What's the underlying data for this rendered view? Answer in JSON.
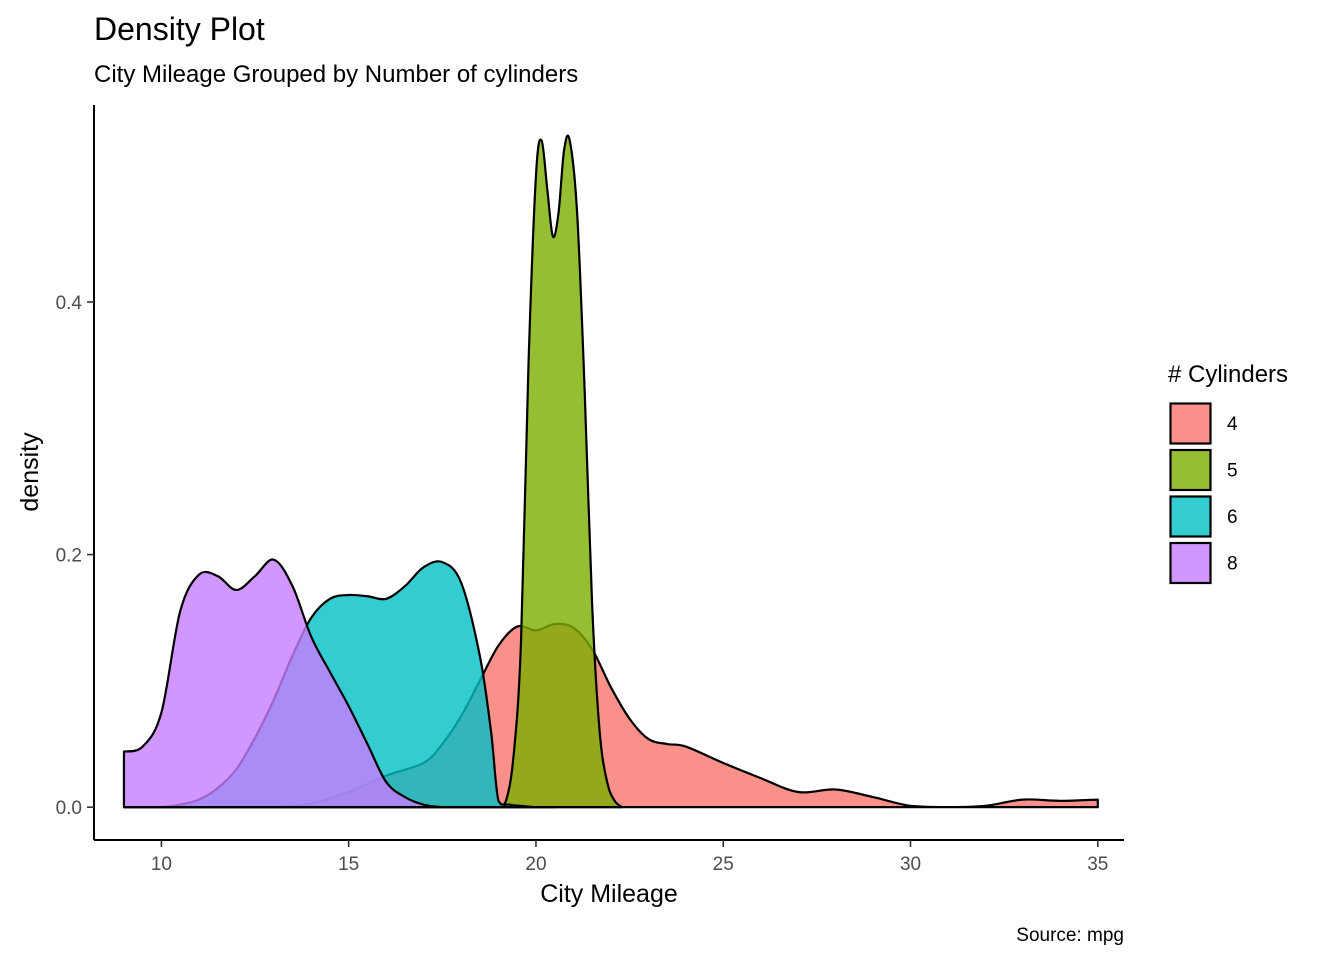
{
  "chart_data": {
    "type": "area",
    "title": "Density Plot",
    "subtitle": "City Mileage Grouped by Number of cylinders",
    "xlabel": "City Mileage",
    "ylabel": "density",
    "caption": "Source: mpg",
    "xlim": [
      8.2,
      35.7
    ],
    "ylim": [
      -0.026,
      0.556
    ],
    "x_ticks": [
      10,
      15,
      20,
      25,
      30,
      35
    ],
    "y_ticks": [
      0.0,
      0.2,
      0.4
    ],
    "y_tick_labels": [
      "0.0",
      "0.2",
      "0.4"
    ],
    "grid": false,
    "legend_position": "right",
    "legend_title": "# Cylinders",
    "series": [
      {
        "name": "4",
        "color": "#F8766D",
        "x": [
          9,
          11,
          13,
          14,
          15,
          16,
          17,
          17.5,
          18,
          18.5,
          19,
          19.5,
          20,
          20.5,
          21,
          21.5,
          22,
          22.5,
          23,
          23.5,
          24,
          25,
          26,
          27,
          28,
          29,
          30,
          31,
          32,
          33,
          34,
          35
        ],
        "y": [
          0.0,
          0.0,
          0.0,
          0.003,
          0.012,
          0.025,
          0.035,
          0.05,
          0.072,
          0.1,
          0.128,
          0.143,
          0.14,
          0.145,
          0.142,
          0.125,
          0.095,
          0.07,
          0.054,
          0.05,
          0.048,
          0.035,
          0.023,
          0.012,
          0.014,
          0.008,
          0.001,
          0.0,
          0.001,
          0.006,
          0.005,
          0.006
        ]
      },
      {
        "name": "5",
        "color": "#7CAE00",
        "x": [
          19.0,
          19.2,
          19.4,
          19.6,
          19.8,
          20.0,
          20.15,
          20.3,
          20.45,
          20.6,
          20.75,
          20.9,
          21.1,
          21.3,
          21.5,
          21.7,
          21.9,
          22.1,
          22.3
        ],
        "y": [
          0.0,
          0.005,
          0.04,
          0.13,
          0.35,
          0.5,
          0.528,
          0.49,
          0.452,
          0.47,
          0.52,
          0.528,
          0.47,
          0.33,
          0.16,
          0.06,
          0.02,
          0.005,
          0.0
        ]
      },
      {
        "name": "6",
        "color": "#00BFC4",
        "x": [
          9,
          10,
          10.5,
          11,
          11.5,
          12,
          12.5,
          13,
          13.5,
          14,
          14.5,
          15,
          15.5,
          16,
          16.5,
          17,
          17.5,
          18,
          18.5,
          18.8,
          19.0,
          19.3,
          19.6,
          20.0,
          20.5
        ],
        "y": [
          0.0,
          0.0,
          0.002,
          0.006,
          0.015,
          0.03,
          0.055,
          0.085,
          0.12,
          0.15,
          0.165,
          0.168,
          0.167,
          0.165,
          0.175,
          0.19,
          0.194,
          0.178,
          0.12,
          0.06,
          0.005,
          0.002,
          0.001,
          0.0,
          0.0
        ]
      },
      {
        "name": "8",
        "color": "#C77CFF",
        "x": [
          9,
          9.5,
          10,
          10.5,
          11,
          11.5,
          12,
          12.5,
          13,
          13.5,
          14,
          14.5,
          15,
          15.5,
          16,
          16.5,
          17,
          17.5,
          18,
          18.5,
          19
        ],
        "y": [
          0.044,
          0.048,
          0.075,
          0.155,
          0.184,
          0.183,
          0.172,
          0.183,
          0.196,
          0.175,
          0.135,
          0.107,
          0.08,
          0.05,
          0.02,
          0.008,
          0.002,
          0.0,
          0.0,
          0.0,
          0.0
        ]
      }
    ]
  }
}
